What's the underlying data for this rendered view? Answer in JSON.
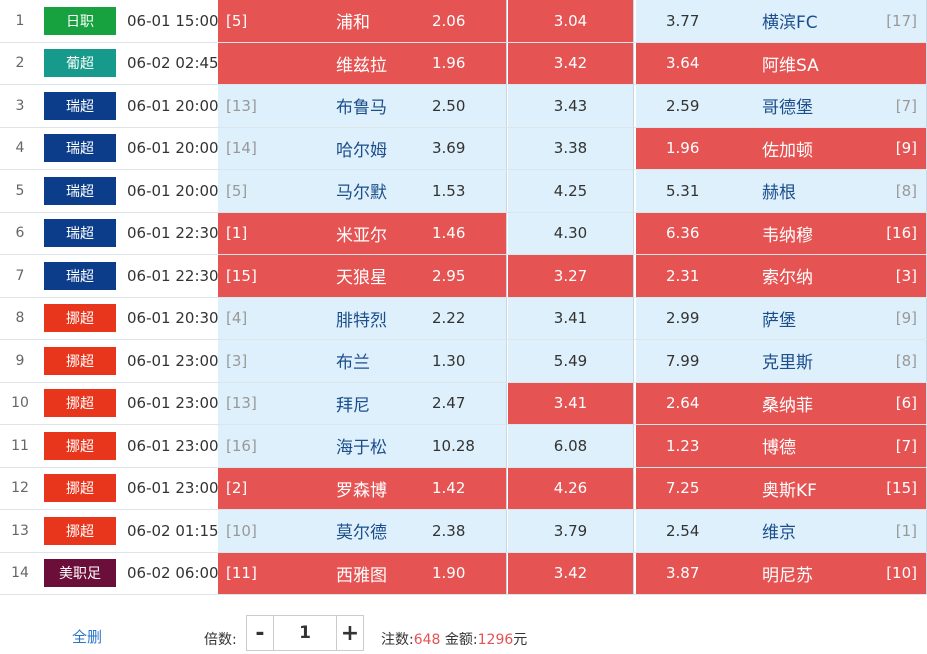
{
  "colors": {
    "selected": "#e55353",
    "unselected": "#def0fb",
    "league_japan": "#17a23f",
    "league_portugal": "#159a8b",
    "league_sweden": "#0b3d8a",
    "league_norway": "#e8361c",
    "league_usa": "#6b0f3a"
  },
  "matches": [
    {
      "index": "1",
      "league": "日职",
      "league_color": "#17a23f",
      "time": "06-01 15:00",
      "home_rank": "[5]",
      "home_team": "浦和",
      "home_odds": "2.06",
      "home_selected": true,
      "draw_odds": "3.04",
      "draw_selected": true,
      "away_odds": "3.77",
      "away_team": "横滨FC",
      "away_rank": "[17]",
      "away_selected": false
    },
    {
      "index": "2",
      "league": "葡超",
      "league_color": "#159a8b",
      "time": "06-02 02:45",
      "home_rank": "",
      "home_team": "维兹拉",
      "home_odds": "1.96",
      "home_selected": true,
      "draw_odds": "3.42",
      "draw_selected": true,
      "away_odds": "3.64",
      "away_team": "阿维SA",
      "away_rank": "",
      "away_selected": true
    },
    {
      "index": "3",
      "league": "瑞超",
      "league_color": "#0b3d8a",
      "time": "06-01 20:00",
      "home_rank": "[13]",
      "home_team": "布鲁马",
      "home_odds": "2.50",
      "home_selected": false,
      "draw_odds": "3.43",
      "draw_selected": false,
      "away_odds": "2.59",
      "away_team": "哥德堡",
      "away_rank": "[7]",
      "away_selected": false
    },
    {
      "index": "4",
      "league": "瑞超",
      "league_color": "#0b3d8a",
      "time": "06-01 20:00",
      "home_rank": "[14]",
      "home_team": "哈尔姆",
      "home_odds": "3.69",
      "home_selected": false,
      "draw_odds": "3.38",
      "draw_selected": false,
      "away_odds": "1.96",
      "away_team": "佐加顿",
      "away_rank": "[9]",
      "away_selected": true
    },
    {
      "index": "5",
      "league": "瑞超",
      "league_color": "#0b3d8a",
      "time": "06-01 20:00",
      "home_rank": "[5]",
      "home_team": "马尔默",
      "home_odds": "1.53",
      "home_selected": false,
      "draw_odds": "4.25",
      "draw_selected": false,
      "away_odds": "5.31",
      "away_team": "赫根",
      "away_rank": "[8]",
      "away_selected": false
    },
    {
      "index": "6",
      "league": "瑞超",
      "league_color": "#0b3d8a",
      "time": "06-01 22:30",
      "home_rank": "[1]",
      "home_team": "米亚尔",
      "home_odds": "1.46",
      "home_selected": true,
      "draw_odds": "4.30",
      "draw_selected": false,
      "away_odds": "6.36",
      "away_team": "韦纳穆",
      "away_rank": "[16]",
      "away_selected": true
    },
    {
      "index": "7",
      "league": "瑞超",
      "league_color": "#0b3d8a",
      "time": "06-01 22:30",
      "home_rank": "[15]",
      "home_team": "天狼星",
      "home_odds": "2.95",
      "home_selected": true,
      "draw_odds": "3.27",
      "draw_selected": true,
      "away_odds": "2.31",
      "away_team": "索尔纳",
      "away_rank": "[3]",
      "away_selected": true
    },
    {
      "index": "8",
      "league": "挪超",
      "league_color": "#e8361c",
      "time": "06-01 20:30",
      "home_rank": "[4]",
      "home_team": "腓特烈",
      "home_odds": "2.22",
      "home_selected": false,
      "draw_odds": "3.41",
      "draw_selected": false,
      "away_odds": "2.99",
      "away_team": "萨堡",
      "away_rank": "[9]",
      "away_selected": false
    },
    {
      "index": "9",
      "league": "挪超",
      "league_color": "#e8361c",
      "time": "06-01 23:00",
      "home_rank": "[3]",
      "home_team": "布兰",
      "home_odds": "1.30",
      "home_selected": false,
      "draw_odds": "5.49",
      "draw_selected": false,
      "away_odds": "7.99",
      "away_team": "克里斯",
      "away_rank": "[8]",
      "away_selected": false
    },
    {
      "index": "10",
      "league": "挪超",
      "league_color": "#e8361c",
      "time": "06-01 23:00",
      "home_rank": "[13]",
      "home_team": "拜尼",
      "home_odds": "2.47",
      "home_selected": false,
      "draw_odds": "3.41",
      "draw_selected": true,
      "away_odds": "2.64",
      "away_team": "桑纳菲",
      "away_rank": "[6]",
      "away_selected": true
    },
    {
      "index": "11",
      "league": "挪超",
      "league_color": "#e8361c",
      "time": "06-01 23:00",
      "home_rank": "[16]",
      "home_team": "海于松",
      "home_odds": "10.28",
      "home_selected": false,
      "draw_odds": "6.08",
      "draw_selected": false,
      "away_odds": "1.23",
      "away_team": "博德",
      "away_rank": "[7]",
      "away_selected": true
    },
    {
      "index": "12",
      "league": "挪超",
      "league_color": "#e8361c",
      "time": "06-01 23:00",
      "home_rank": "[2]",
      "home_team": "罗森博",
      "home_odds": "1.42",
      "home_selected": true,
      "draw_odds": "4.26",
      "draw_selected": true,
      "away_odds": "7.25",
      "away_team": "奥斯KF",
      "away_rank": "[15]",
      "away_selected": true
    },
    {
      "index": "13",
      "league": "挪超",
      "league_color": "#e8361c",
      "time": "06-02 01:15",
      "home_rank": "[10]",
      "home_team": "莫尔德",
      "home_odds": "2.38",
      "home_selected": false,
      "draw_odds": "3.79",
      "draw_selected": false,
      "away_odds": "2.54",
      "away_team": "维京",
      "away_rank": "[1]",
      "away_selected": false
    },
    {
      "index": "14",
      "league": "美职足",
      "league_color": "#6b0f3a",
      "time": "06-02 06:00",
      "home_rank": "[11]",
      "home_team": "西雅图",
      "home_odds": "1.90",
      "home_selected": true,
      "draw_odds": "3.42",
      "draw_selected": true,
      "away_odds": "3.87",
      "away_team": "明尼苏",
      "away_rank": "[10]",
      "away_selected": true
    }
  ],
  "footer": {
    "clear_all": "全删",
    "multiplier_label": "倍数:",
    "minus": "-",
    "multiplier_value": "1",
    "plus": "+",
    "bets_label": "注数:",
    "bets_value": "648",
    "amount_label": "金额:",
    "amount_value": "1296",
    "amount_unit": "元"
  }
}
